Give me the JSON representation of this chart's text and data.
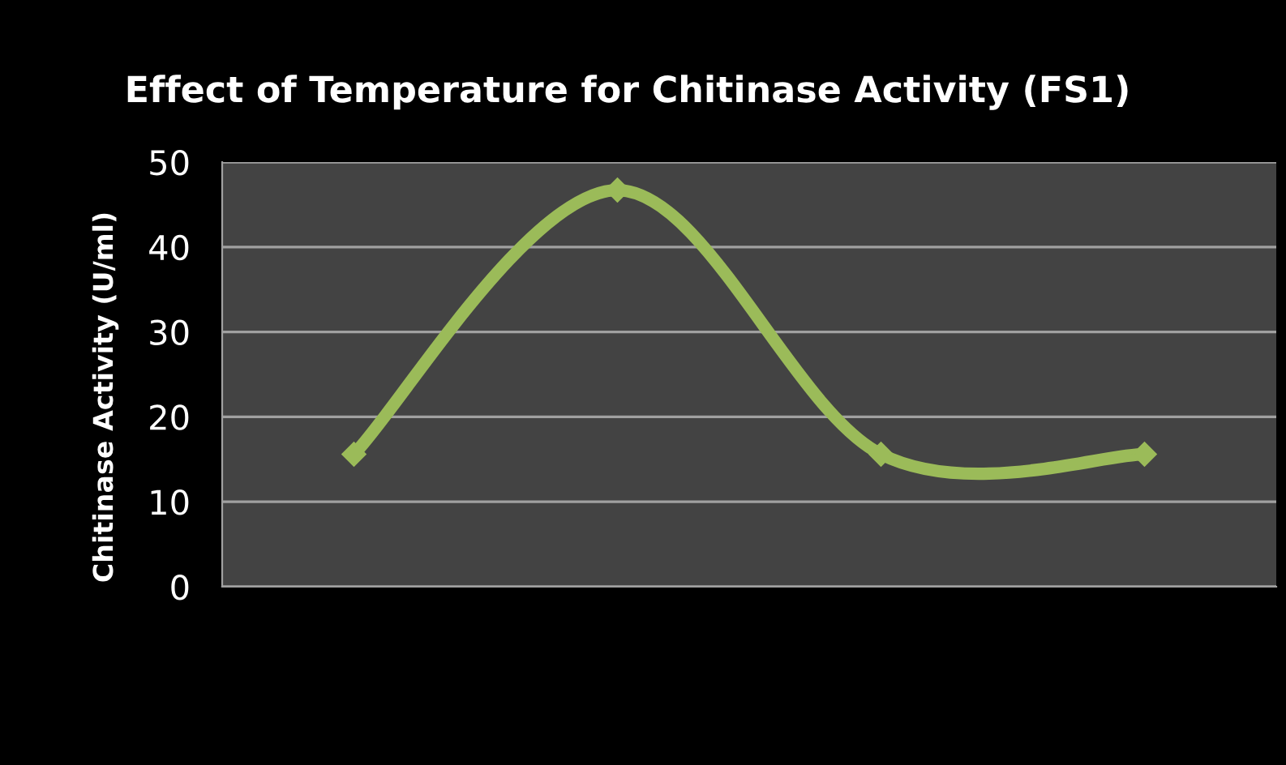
{
  "chart_data": {
    "type": "line",
    "title": "Effect of Temperature for Chitinase Activity (FS1)",
    "ylabel": "Chitinase Activity (U/ml)",
    "categories": [
      null,
      null,
      null,
      null
    ],
    "series": [
      {
        "color": "#9bbb59",
        "values": [
          15.6,
          46.7,
          15.6,
          15.6
        ]
      }
    ],
    "ylim": [
      0,
      50
    ],
    "yticks": [
      0,
      10,
      20,
      30,
      40,
      50
    ],
    "grid": "y",
    "marker": "diamond",
    "line_style": "solid",
    "legend": false
  }
}
